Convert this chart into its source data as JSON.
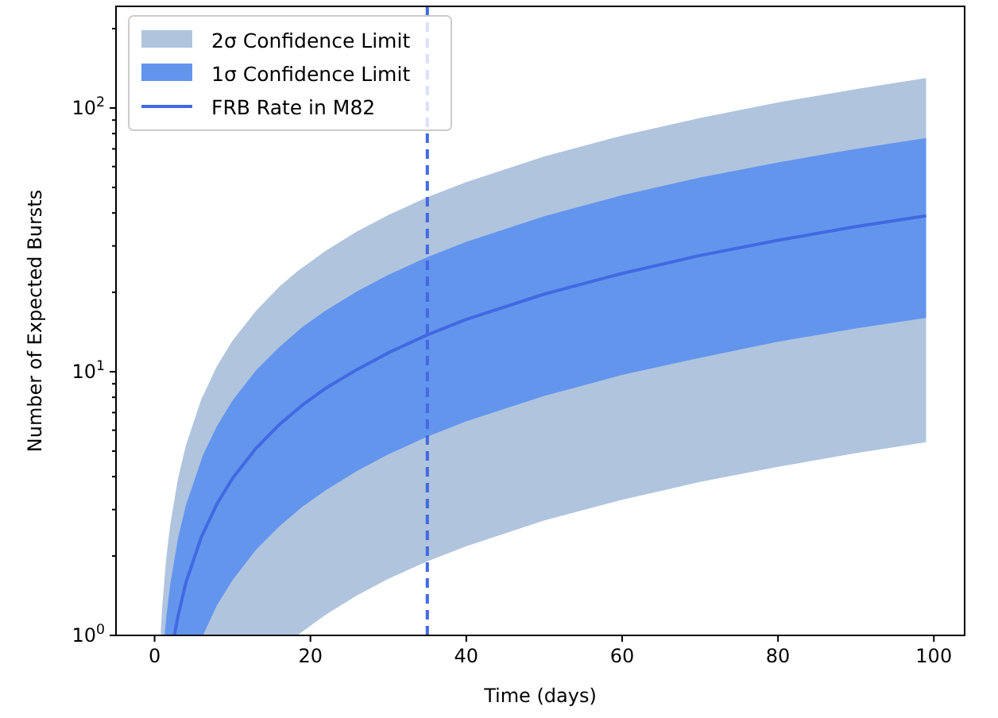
{
  "chart_data": {
    "type": "line",
    "xlabel": "Time (days)",
    "ylabel": "Number of Expected Bursts",
    "log": "y",
    "legend": "top left",
    "grid": false,
    "xlim": [
      -4.95,
      103.95
    ],
    "xticks": [
      0,
      20,
      40,
      60,
      80,
      100
    ],
    "ylim": [
      1,
      243
    ],
    "yticks": [
      {
        "value": 1,
        "label": "10$^{0}$"
      },
      {
        "value": 2,
        "label": null
      },
      {
        "value": 3,
        "label": null
      },
      {
        "value": 4,
        "label": null
      },
      {
        "value": 5,
        "label": null
      },
      {
        "value": 6,
        "label": null
      },
      {
        "value": 7,
        "label": null
      },
      {
        "value": 8,
        "label": null
      },
      {
        "value": 9,
        "label": null
      },
      {
        "value": 10,
        "label": "10$^{1}$"
      },
      {
        "value": 20,
        "label": null
      },
      {
        "value": 30,
        "label": null
      },
      {
        "value": 40,
        "label": null
      },
      {
        "value": 50,
        "label": null
      },
      {
        "value": 60,
        "label": null
      },
      {
        "value": 70,
        "label": null
      },
      {
        "value": 80,
        "label": null
      },
      {
        "value": 90,
        "label": null
      },
      {
        "value": 100,
        "label": "10$^{2}$"
      },
      {
        "value": 200,
        "label": null
      }
    ],
    "series": [
      {
        "name": "2σ Confidence Limit",
        "type": "line",
        "color": "#b0c4de",
        "x": [
          0.8,
          1,
          1.5,
          2,
          3,
          4,
          6,
          8,
          10,
          13,
          16,
          18.3,
          22,
          26,
          30,
          35,
          40,
          50,
          60,
          70,
          80,
          90,
          99
        ],
        "values": [
          null,
          null,
          null,
          null,
          null,
          null,
          null,
          null,
          null,
          null,
          null,
          null,
          null,
          null,
          null,
          null,
          null,
          null,
          null,
          null,
          null,
          null,
          null
        ],
        "lower": [
          1,
          1,
          1,
          1,
          1,
          1,
          1,
          1,
          1,
          1,
          1,
          1.0,
          1.2,
          1.42,
          1.64,
          1.91,
          2.18,
          2.73,
          3.27,
          3.82,
          4.36,
          4.91,
          5.4
        ],
        "upper": [
          1.05,
          1.31,
          1.97,
          2.62,
          3.93,
          5.24,
          7.86,
          10.5,
          13.1,
          17.0,
          21.0,
          24.0,
          28.8,
          34.1,
          39.3,
          45.9,
          52.4,
          65.5,
          78.6,
          91.7,
          105,
          118,
          130
        ]
      },
      {
        "name": "1σ Confidence Limit",
        "type": "line",
        "color": "#6495ed",
        "x": [
          1.3,
          1.5,
          2,
          3,
          4,
          6.2,
          8,
          10,
          13,
          16,
          19,
          22,
          26,
          30,
          35,
          40,
          50,
          60,
          70,
          80,
          90,
          99
        ],
        "values": [
          null,
          null,
          null,
          null,
          null,
          null,
          null,
          null,
          null,
          null,
          null,
          null,
          null,
          null,
          null,
          null,
          null,
          null,
          null,
          null,
          null,
          null
        ],
        "lower": [
          1,
          1,
          1,
          1,
          1,
          1.0,
          1.3,
          1.62,
          2.11,
          2.59,
          3.08,
          3.56,
          4.21,
          4.86,
          5.67,
          6.48,
          8.1,
          9.72,
          11.3,
          13.0,
          14.6,
          16.0
        ],
        "upper": [
          1.01,
          1.17,
          1.56,
          2.33,
          3.11,
          4.82,
          6.22,
          7.78,
          10.1,
          12.4,
          14.8,
          17.1,
          20.2,
          23.3,
          27.2,
          31.1,
          38.9,
          46.7,
          54.5,
          62.2,
          70.0,
          77.0
        ]
      },
      {
        "name": "FRB Rate in M82",
        "type": "line",
        "color": "#4169e1",
        "x": [
          2.54,
          3,
          4,
          6,
          8,
          10,
          13,
          16,
          19,
          22,
          26,
          30,
          35,
          40,
          50,
          60,
          70,
          80,
          90,
          99
        ],
        "values": [
          1.0,
          1.18,
          1.58,
          2.36,
          3.15,
          3.94,
          5.12,
          6.3,
          7.49,
          8.67,
          10.2,
          11.8,
          13.8,
          15.8,
          19.7,
          23.6,
          27.6,
          31.5,
          35.5,
          39.0
        ]
      }
    ],
    "ref_lines": [
      {
        "axis": "x",
        "value": 35,
        "color": "#4169e1",
        "line_style": "dashed"
      }
    ]
  }
}
